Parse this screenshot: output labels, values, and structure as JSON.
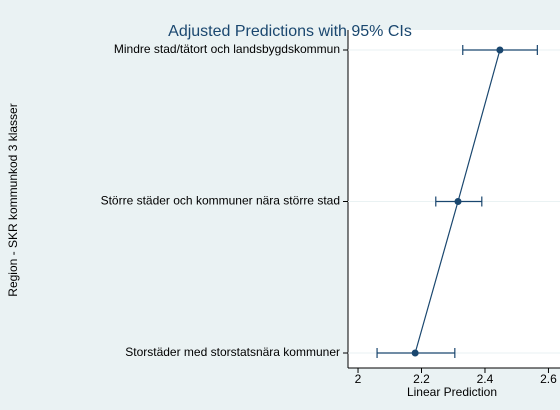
{
  "chart_data": {
    "type": "line",
    "title": "Adjusted Predictions with 95% CIs",
    "x_label": "Linear Prediction",
    "y_label": "Region - SKR kommunkod 3 klasser",
    "categories": [
      "Mindre stad/tätort och landsbygdskommun",
      "Större städer och kommuner nära större stad",
      "Storstäder med storstatsnära kommuner"
    ],
    "values": [
      2.447,
      2.315,
      2.18
    ],
    "ci_lower": [
      2.33,
      2.245,
      2.06
    ],
    "ci_upper": [
      2.565,
      2.39,
      2.305
    ],
    "color": "#1a476f",
    "xlim": [
      1.97,
      2.66
    ],
    "xticks": [
      2,
      2.2,
      2.4,
      2.6
    ],
    "grid": true
  }
}
